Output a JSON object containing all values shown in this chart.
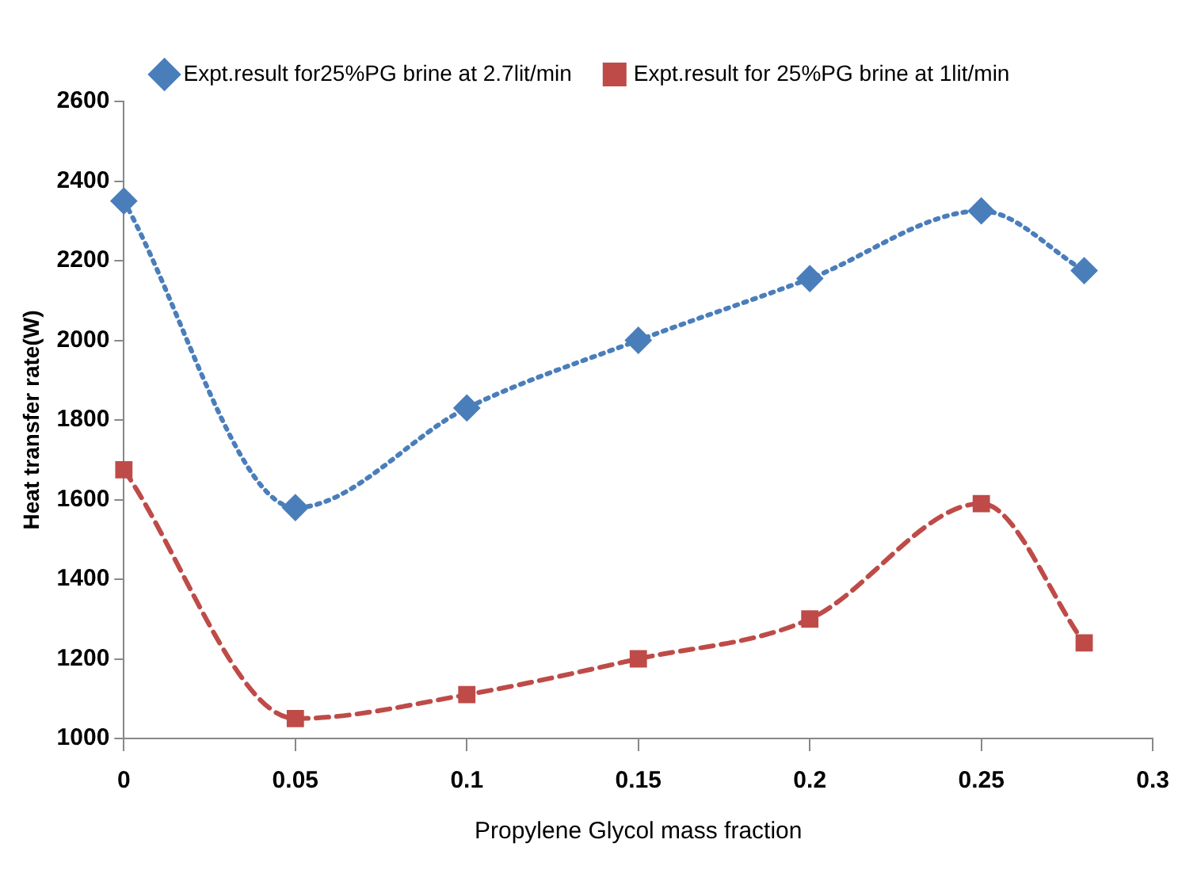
{
  "chart_data": {
    "type": "line",
    "xlabel": "Propylene Glycol mass fraction",
    "ylabel": "Heat transfer rate(W)",
    "x": [
      0,
      0.05,
      0.1,
      0.15,
      0.2,
      0.25,
      0.28
    ],
    "series": [
      {
        "name": "Expt.result for25%PG brine at 2.7lit/min",
        "color": "#4a7ebb",
        "values": [
          2350,
          1580,
          1830,
          2000,
          2155,
          2325,
          2175
        ],
        "marker": "diamond",
        "line_style": "dotted"
      },
      {
        "name": "Expt.result for 25%PG brine at 1lit/min",
        "color": "#be4b48",
        "values": [
          1675,
          1050,
          1110,
          1200,
          1300,
          1590,
          1240
        ],
        "marker": "square",
        "line_style": "dashed"
      }
    ],
    "xlim": [
      0,
      0.3
    ],
    "xticks": [
      0,
      0.05,
      0.1,
      0.15,
      0.2,
      0.25,
      0.3
    ],
    "ylim": [
      1000,
      2600
    ],
    "yticks": [
      1000,
      1200,
      1400,
      1600,
      1800,
      2000,
      2200,
      2400,
      2600
    ],
    "grid": false,
    "legend": "top"
  }
}
